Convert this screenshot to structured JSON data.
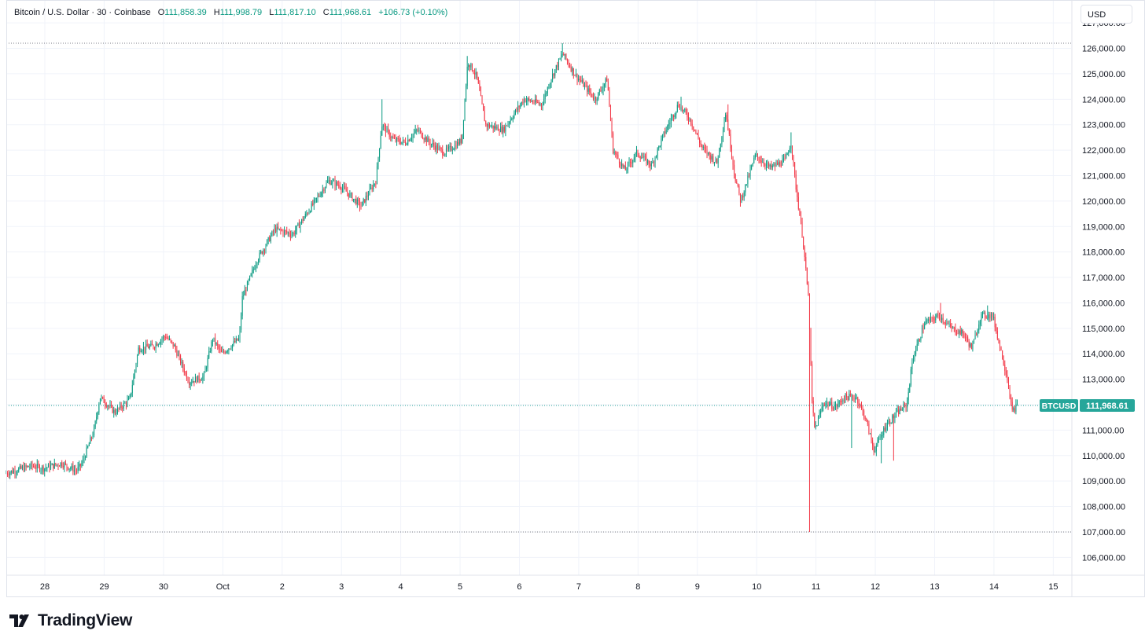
{
  "header": {
    "symbol": "Bitcoin / U.S. Dollar · 30 · Coinbase",
    "ohlc": [
      {
        "key": "O",
        "value": "111,858.39"
      },
      {
        "key": "H",
        "value": "111,998.79"
      },
      {
        "key": "L",
        "value": "111,817.10"
      },
      {
        "key": "C",
        "value": "111,968.61"
      }
    ],
    "change": "+106.73 (+0.10%)"
  },
  "currency_button": "USD",
  "brand": "TradingView",
  "colors": {
    "up": "#089981",
    "down": "#f23645",
    "grid": "#f0f3fa",
    "price_line": "#26a69a"
  },
  "chart_data": {
    "type": "candlestick",
    "title": "Bitcoin / U.S. Dollar · 30 · Coinbase",
    "timeframe": "30",
    "ylim": [
      105300,
      127900
    ],
    "y_ticks": [
      "127,000.00",
      "126,000.00",
      "125,000.00",
      "124,000.00",
      "123,000.00",
      "122,000.00",
      "121,000.00",
      "120,000.00",
      "119,000.00",
      "118,000.00",
      "117,000.00",
      "116,000.00",
      "115,000.00",
      "114,000.00",
      "113,000.00",
      "112,000.00",
      "111,000.00",
      "110,000.00",
      "109,000.00",
      "108,000.00",
      "107,000.00",
      "106,000.00"
    ],
    "x_ticks": [
      "28",
      "29",
      "30",
      "Oct",
      "2",
      "3",
      "4",
      "5",
      "6",
      "7",
      "8",
      "9",
      "10",
      "11",
      "12",
      "13",
      "14",
      "15"
    ],
    "x_tick_days": [
      28,
      29,
      30,
      31,
      32,
      33,
      34,
      35,
      36,
      37,
      38,
      39,
      40,
      41,
      42,
      43,
      44,
      45
    ],
    "x_range_days": [
      27.35,
      45.3
    ],
    "last_price_label": {
      "symbol": "BTCUSD",
      "price": "111,968.61",
      "value": 111968.61
    },
    "reference_lines": [
      126200,
      107000
    ],
    "price_path": [
      {
        "d": 27.35,
        "p": 109300
      },
      {
        "d": 27.8,
        "p": 109600
      },
      {
        "d": 28.0,
        "p": 109500
      },
      {
        "d": 28.3,
        "p": 109700
      },
      {
        "d": 28.55,
        "p": 109400
      },
      {
        "d": 28.65,
        "p": 109700
      },
      {
        "d": 28.85,
        "p": 111000
      },
      {
        "d": 28.95,
        "p": 112300
      },
      {
        "d": 29.2,
        "p": 111700
      },
      {
        "d": 29.45,
        "p": 112200
      },
      {
        "d": 29.6,
        "p": 114200
      },
      {
        "d": 29.85,
        "p": 114300
      },
      {
        "d": 30.05,
        "p": 114700
      },
      {
        "d": 30.2,
        "p": 114300
      },
      {
        "d": 30.45,
        "p": 112900
      },
      {
        "d": 30.7,
        "p": 113100
      },
      {
        "d": 30.85,
        "p": 114600
      },
      {
        "d": 31.0,
        "p": 114000
      },
      {
        "d": 31.3,
        "p": 114600
      },
      {
        "d": 31.35,
        "p": 116200
      },
      {
        "d": 31.6,
        "p": 117700
      },
      {
        "d": 31.9,
        "p": 118900
      },
      {
        "d": 32.2,
        "p": 118700
      },
      {
        "d": 32.55,
        "p": 119900
      },
      {
        "d": 32.8,
        "p": 120800
      },
      {
        "d": 33.0,
        "p": 120600
      },
      {
        "d": 33.35,
        "p": 119800
      },
      {
        "d": 33.6,
        "p": 120800
      },
      {
        "d": 33.7,
        "p": 123000
      },
      {
        "d": 33.9,
        "p": 122400
      },
      {
        "d": 34.1,
        "p": 122300
      },
      {
        "d": 34.3,
        "p": 122800
      },
      {
        "d": 34.5,
        "p": 122300
      },
      {
        "d": 34.75,
        "p": 121900
      },
      {
        "d": 34.95,
        "p": 122200
      },
      {
        "d": 35.05,
        "p": 122400
      },
      {
        "d": 35.15,
        "p": 125500
      },
      {
        "d": 35.3,
        "p": 124900
      },
      {
        "d": 35.45,
        "p": 123000
      },
      {
        "d": 35.75,
        "p": 122800
      },
      {
        "d": 35.95,
        "p": 123500
      },
      {
        "d": 36.1,
        "p": 124000
      },
      {
        "d": 36.4,
        "p": 123800
      },
      {
        "d": 36.55,
        "p": 124800
      },
      {
        "d": 36.75,
        "p": 125800
      },
      {
        "d": 36.95,
        "p": 125000
      },
      {
        "d": 37.3,
        "p": 124000
      },
      {
        "d": 37.5,
        "p": 124800
      },
      {
        "d": 37.6,
        "p": 122000
      },
      {
        "d": 37.8,
        "p": 121200
      },
      {
        "d": 38.0,
        "p": 121900
      },
      {
        "d": 38.25,
        "p": 121400
      },
      {
        "d": 38.45,
        "p": 122600
      },
      {
        "d": 38.7,
        "p": 123800
      },
      {
        "d": 38.9,
        "p": 123200
      },
      {
        "d": 39.1,
        "p": 122100
      },
      {
        "d": 39.35,
        "p": 121500
      },
      {
        "d": 39.5,
        "p": 123500
      },
      {
        "d": 39.65,
        "p": 121000
      },
      {
        "d": 39.75,
        "p": 120000
      },
      {
        "d": 40.0,
        "p": 121800
      },
      {
        "d": 40.25,
        "p": 121300
      },
      {
        "d": 40.5,
        "p": 121600
      },
      {
        "d": 40.6,
        "p": 122300
      },
      {
        "d": 40.68,
        "p": 120600
      },
      {
        "d": 40.8,
        "p": 118500
      },
      {
        "d": 40.9,
        "p": 116000
      },
      {
        "d": 40.95,
        "p": 112200
      },
      {
        "d": 41.0,
        "p": 111000
      },
      {
        "d": 41.15,
        "p": 112100
      },
      {
        "d": 41.35,
        "p": 111900
      },
      {
        "d": 41.5,
        "p": 112300
      },
      {
        "d": 41.7,
        "p": 112300
      },
      {
        "d": 41.85,
        "p": 111500
      },
      {
        "d": 42.0,
        "p": 110200
      },
      {
        "d": 42.2,
        "p": 111200
      },
      {
        "d": 42.4,
        "p": 111700
      },
      {
        "d": 42.55,
        "p": 112000
      },
      {
        "d": 42.65,
        "p": 113800
      },
      {
        "d": 42.85,
        "p": 115200
      },
      {
        "d": 43.1,
        "p": 115500
      },
      {
        "d": 43.3,
        "p": 115000
      },
      {
        "d": 43.5,
        "p": 114800
      },
      {
        "d": 43.65,
        "p": 114200
      },
      {
        "d": 43.8,
        "p": 115500
      },
      {
        "d": 44.0,
        "p": 115500
      },
      {
        "d": 44.15,
        "p": 114000
      },
      {
        "d": 44.25,
        "p": 113000
      },
      {
        "d": 44.33,
        "p": 111700
      },
      {
        "d": 44.4,
        "p": 111968.61
      }
    ],
    "spikes": [
      {
        "d": 40.9,
        "low": 107000
      },
      {
        "d": 41.6,
        "low": 110300
      },
      {
        "d": 42.1,
        "low": 109700
      },
      {
        "d": 42.3,
        "low": 109800
      }
    ],
    "spike_highs": [
      {
        "d": 35.12,
        "high": 125700
      },
      {
        "d": 36.72,
        "high": 126200
      },
      {
        "d": 33.68,
        "high": 124000
      },
      {
        "d": 40.58,
        "high": 122700
      },
      {
        "d": 39.52,
        "high": 123800
      },
      {
        "d": 38.72,
        "high": 124100
      },
      {
        "d": 43.1,
        "high": 116000
      },
      {
        "d": 43.9,
        "high": 115900
      }
    ]
  }
}
